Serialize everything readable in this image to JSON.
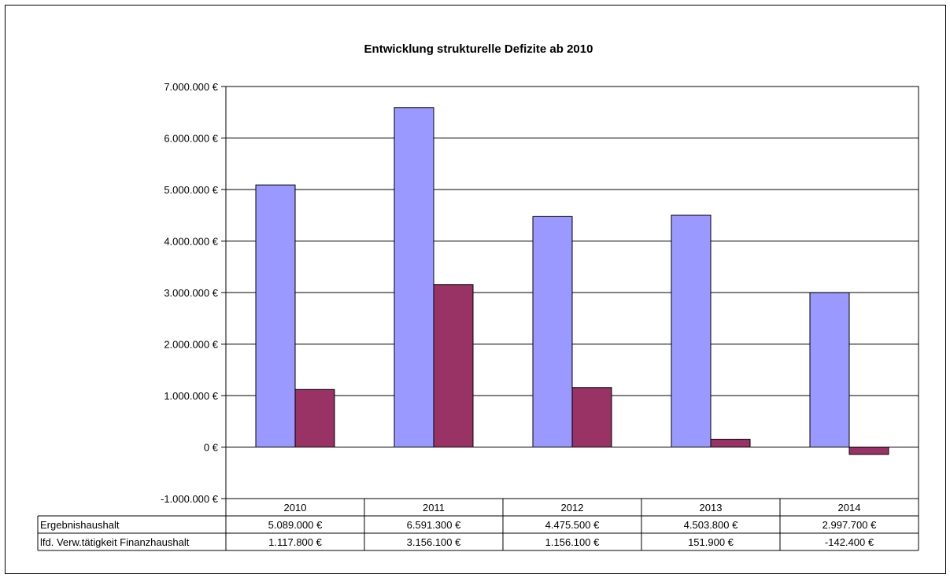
{
  "chart_data": {
    "type": "bar",
    "title": "Entwicklung strukturelle Defizite ab 2010",
    "categories": [
      "2010",
      "2011",
      "2012",
      "2013",
      "2014"
    ],
    "series": [
      {
        "name": "Ergebnishaushalt",
        "values": [
          5089000,
          6591300,
          4475500,
          4503800,
          2997700
        ],
        "labels": [
          "5.089.000 €",
          "6.591.300 €",
          "4.475.500 €",
          "4.503.800 €",
          "2.997.700 €"
        ],
        "color": "#9999ff"
      },
      {
        "name": "lfd. Verw.tätigkeit Finanzhaushalt",
        "values": [
          1117800,
          3156100,
          1156100,
          151900,
          -142400
        ],
        "labels": [
          "1.117.800 €",
          "3.156.100 €",
          "1.156.100 €",
          "151.900 €",
          "-142.400 €"
        ],
        "color": "#993366"
      }
    ],
    "ylim": [
      -1000000,
      7000000
    ],
    "yticks": [
      -1000000,
      0,
      1000000,
      2000000,
      3000000,
      4000000,
      5000000,
      6000000,
      7000000
    ],
    "ytick_labels": [
      "-1.000.000 €",
      "0 €",
      "1.000.000 €",
      "2.000.000 €",
      "3.000.000 €",
      "4.000.000 €",
      "5.000.000 €",
      "6.000.000 €",
      "7.000.000 €"
    ],
    "grid": true,
    "legend": "data-table"
  }
}
